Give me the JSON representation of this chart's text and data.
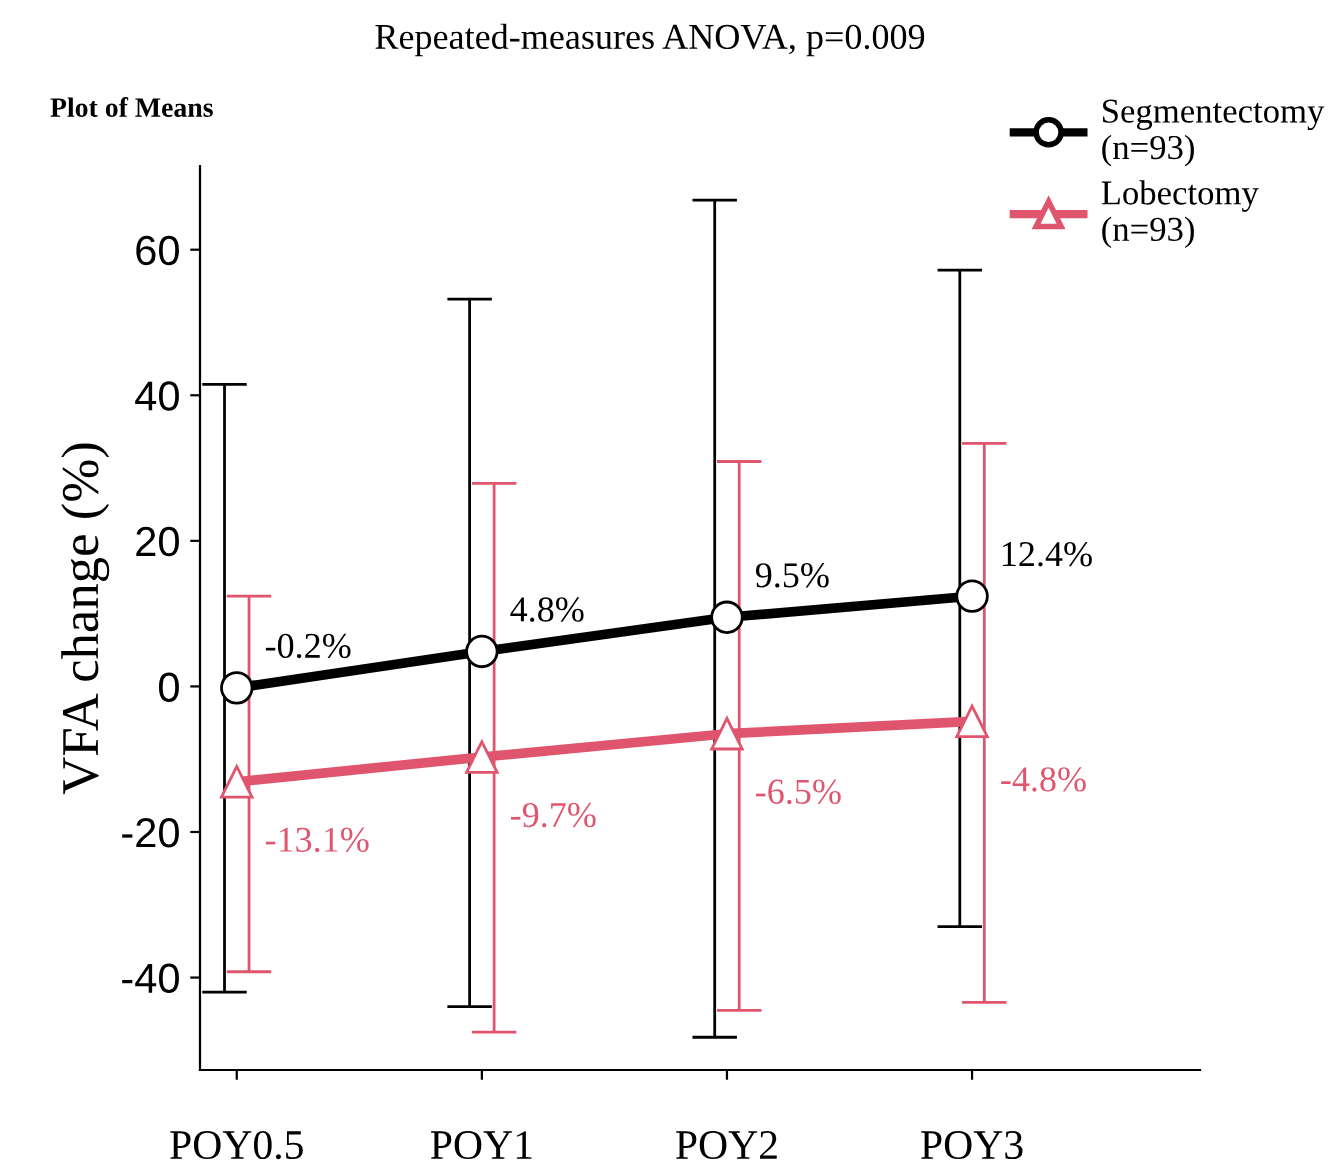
{
  "chart_data": {
    "type": "line",
    "title": "Repeated-measures ANOVA, p=0.009",
    "subtitle": "Plot of Means",
    "ylabel": "VFA change (%)",
    "categories": [
      "POY0.5",
      "POY1",
      "POY2",
      "POY3"
    ],
    "series": [
      {
        "name": "Segmentectomy\n(n=93)",
        "color": "#000000",
        "marker": "circle",
        "values": [
          -0.2,
          4.8,
          9.5,
          12.4
        ],
        "value_labels": [
          "-0.2%",
          "4.8%",
          "9.5%",
          "12.4%"
        ],
        "errors": [
          [
            -42,
            41.5
          ],
          [
            -44,
            53.2
          ],
          [
            -48.2,
            66.8
          ],
          [
            -33,
            57.2
          ]
        ]
      },
      {
        "name": "Lobectomy\n(n=93)",
        "color": "#e0556e",
        "marker": "triangle",
        "values": [
          -13.1,
          -9.7,
          -6.5,
          -4.8
        ],
        "value_labels": [
          "-13.1%",
          "-9.7%",
          "-6.5%",
          "-4.8%"
        ],
        "errors": [
          [
            -39.2,
            12.4
          ],
          [
            -47.5,
            27.9
          ],
          [
            -44.5,
            30.9
          ],
          [
            -43.4,
            33.4
          ]
        ]
      }
    ],
    "ylim": [
      -52.7,
      71.5
    ],
    "yticks": [
      -40,
      -20,
      0,
      20,
      40,
      60
    ],
    "grid": false,
    "legend": "top right",
    "line_style": "solid"
  }
}
